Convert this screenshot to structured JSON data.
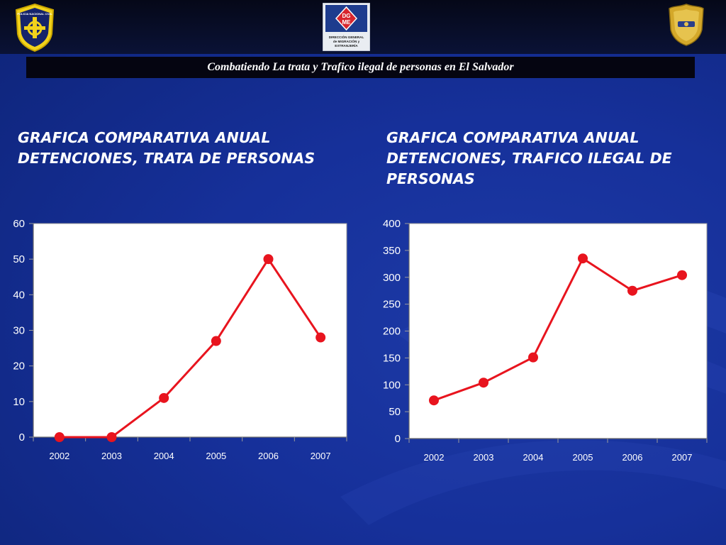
{
  "header": {
    "banner_text": "Combatiendo La trata y Trafico ilegal de personas en El Salvador",
    "logo_left": {
      "name": "policia-nacional-civil-logo",
      "text": "POLICIA NACIONAL CIVIL"
    },
    "logo_center": {
      "name": "dgme-logo",
      "abbr": "DGME",
      "lines": [
        "DIRECCIÓN GENERAL",
        "de MIGRACIÓN y",
        "EXTRANJERÍA"
      ]
    },
    "logo_right": {
      "name": "police-badge-logo"
    }
  },
  "colors": {
    "line": "#e8141e",
    "text_light": "#ffffff",
    "axis_text": "#ffffff"
  },
  "charts": [
    {
      "title_lines": [
        "GRAFICA COMPARATIVA ANUAL",
        "DETENCIONES, TRATA DE PERSONAS"
      ]
    },
    {
      "title_lines": [
        "GRAFICA COMPARATIVA ANUAL",
        "DETENCIONES, TRAFICO ILEGAL DE",
        "PERSONAS"
      ]
    }
  ],
  "chart_data": [
    {
      "type": "line",
      "title": "GRAFICA COMPARATIVA ANUAL DETENCIONES, TRATA DE PERSONAS",
      "categories": [
        "2002",
        "2003",
        "2004",
        "2005",
        "2006",
        "2007"
      ],
      "values": [
        0,
        0,
        11,
        27,
        50,
        28
      ],
      "data_labels": [
        "0",
        "0",
        "11",
        "27",
        "50",
        "28"
      ],
      "ylim": [
        0,
        60
      ],
      "yticks": [
        0,
        10,
        20,
        30,
        40,
        50,
        60
      ],
      "grid": false,
      "legend": "none"
    },
    {
      "type": "line",
      "title": "GRAFICA COMPARATIVA ANUAL DETENCIONES, TRAFICO ILEGAL DE PERSONAS",
      "categories": [
        "2002",
        "2003",
        "2004",
        "2005",
        "2006",
        "2007"
      ],
      "values": [
        71,
        104,
        151,
        335,
        275,
        304
      ],
      "data_labels": [
        "71",
        "104",
        "151",
        "335",
        "275",
        "304"
      ],
      "ylim": [
        0,
        400
      ],
      "yticks": [
        0,
        50,
        100,
        150,
        200,
        250,
        300,
        350,
        400
      ],
      "grid": false,
      "legend": "none"
    }
  ]
}
